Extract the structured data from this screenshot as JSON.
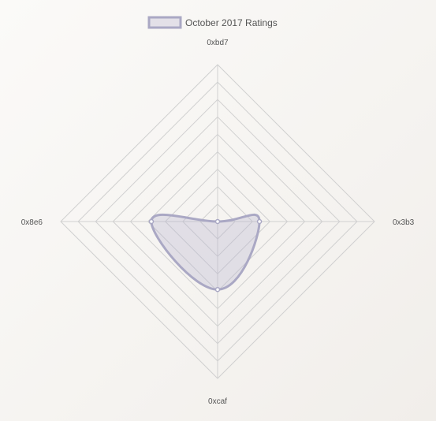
{
  "chart_data": {
    "type": "radar",
    "labels": [
      "0xbd7",
      "0x3b3",
      "0xcaf",
      "0x8e6"
    ],
    "series": [
      {
        "name": "October 2017 Ratings",
        "values": [
          0,
          2.4,
          3.9,
          3.8
        ]
      }
    ],
    "r_range": [
      0,
      9
    ],
    "gridlines": 9,
    "grid": true,
    "legend": "top-center",
    "colors": {
      "series_stroke": "#aaa8c4",
      "series_fill": "rgba(180,178,205,0.32)",
      "grid": "#d0d0d0",
      "point_fill": "#ffffff"
    }
  }
}
